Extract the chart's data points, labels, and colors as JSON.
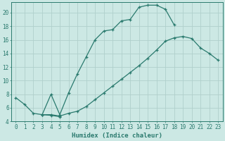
{
  "xlabel": "Humidex (Indice chaleur)",
  "xlim": [
    -0.5,
    23.5
  ],
  "ylim": [
    4,
    21.5
  ],
  "xticks": [
    0,
    1,
    2,
    3,
    4,
    5,
    6,
    7,
    8,
    9,
    10,
    11,
    12,
    13,
    14,
    15,
    16,
    17,
    18,
    19,
    20,
    21,
    22,
    23
  ],
  "yticks": [
    4,
    6,
    8,
    10,
    12,
    14,
    16,
    18,
    20
  ],
  "bg_color": "#cce8e4",
  "line_color": "#2a7a6e",
  "grid_color": "#b0d0cc",
  "curve1_x": [
    0,
    1,
    2,
    3,
    4,
    5
  ],
  "curve1_y": [
    7.5,
    6.5,
    5.2,
    5.0,
    4.9,
    4.7
  ],
  "curve2_x": [
    3,
    4,
    5,
    6,
    7,
    8,
    9,
    10,
    11,
    12,
    13,
    14,
    15,
    16,
    17,
    18
  ],
  "curve2_y": [
    5.0,
    8.0,
    5.0,
    8.2,
    11.0,
    13.5,
    16.0,
    17.3,
    17.5,
    18.8,
    19.0,
    20.8,
    21.1,
    21.1,
    20.5,
    18.2
  ],
  "curve3_x": [
    3,
    4,
    5,
    6,
    7,
    8,
    9,
    10,
    11,
    12,
    13,
    14,
    15,
    16,
    17,
    18,
    19,
    20,
    21,
    22,
    23
  ],
  "curve3_y": [
    5.0,
    5.0,
    4.8,
    5.2,
    5.5,
    6.2,
    7.2,
    8.2,
    9.2,
    10.2,
    11.2,
    12.2,
    13.3,
    14.5,
    15.8,
    16.3,
    16.5,
    16.2,
    14.8,
    14.0,
    13.0
  ]
}
